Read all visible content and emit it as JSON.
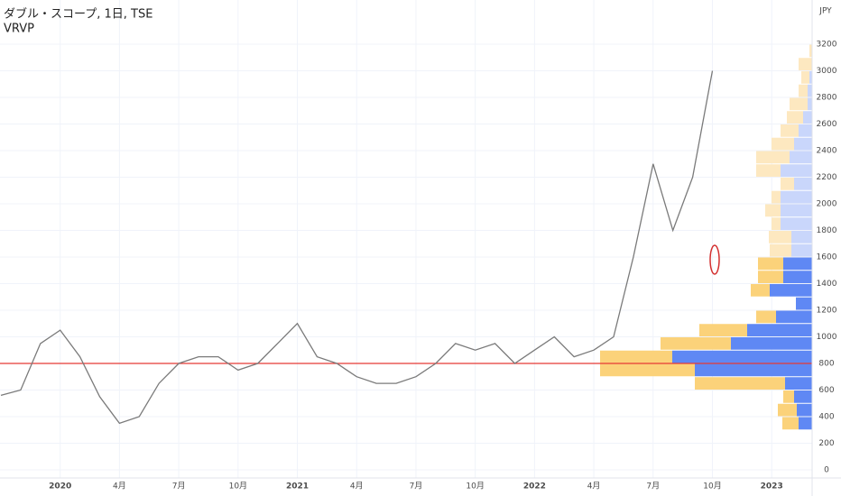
{
  "chart_data": {
    "type": "line",
    "title": "ダブル・スコープ, 1日, TSE",
    "indicator": "VRVP",
    "y_axis_label": "JPY",
    "x": [
      "2019-10",
      "2019-11",
      "2019-12",
      "2020-01",
      "2020-02",
      "2020-03",
      "2020-04",
      "2020-05",
      "2020-06",
      "2020-07",
      "2020-08",
      "2020-09",
      "2020-10",
      "2020-11",
      "2020-12",
      "2021-01",
      "2021-02",
      "2021-03",
      "2021-04",
      "2021-05",
      "2021-06",
      "2021-07",
      "2021-08",
      "2021-09",
      "2021-10",
      "2021-11",
      "2021-12",
      "2022-01",
      "2022-02",
      "2022-03",
      "2022-04",
      "2022-05",
      "2022-06",
      "2022-07",
      "2022-08",
      "2022-09",
      "2022-10"
    ],
    "series": [
      {
        "color": "#7a7a7a",
        "values": [
          560,
          600,
          950,
          1050,
          850,
          550,
          350,
          400,
          650,
          800,
          850,
          850,
          750,
          800,
          950,
          1100,
          850,
          800,
          700,
          650,
          650,
          700,
          800,
          950,
          900,
          950,
          800,
          900,
          1000,
          850,
          900,
          1000,
          1600,
          2300,
          1800,
          2200,
          3000
        ]
      }
    ],
    "xlim": [
      "2019-10",
      "2023-03"
    ],
    "xticks": [
      {
        "value": "2020-01",
        "label": "2020"
      },
      {
        "value": "2020-04",
        "label": "4月"
      },
      {
        "value": "2020-07",
        "label": "7月"
      },
      {
        "value": "2020-10",
        "label": "10月"
      },
      {
        "value": "2021-01",
        "label": "2021"
      },
      {
        "value": "2021-04",
        "label": "4月"
      },
      {
        "value": "2021-07",
        "label": "7月"
      },
      {
        "value": "2021-10",
        "label": "10月"
      },
      {
        "value": "2022-01",
        "label": "2022"
      },
      {
        "value": "2022-04",
        "label": "4月"
      },
      {
        "value": "2022-07",
        "label": "7月"
      },
      {
        "value": "2022-10",
        "label": "10月"
      },
      {
        "value": "2023-01",
        "label": "2023"
      }
    ],
    "ylim": [
      -61,
      3532
    ],
    "yticks": [
      0,
      200,
      400,
      600,
      800,
      1000,
      1200,
      1400,
      1600,
      1800,
      2000,
      2200,
      2400,
      2600,
      2800,
      3000,
      3200
    ],
    "grid": true,
    "horizontal_line": {
      "value": 800,
      "color": "#e53935"
    },
    "volume_profile": {
      "bins": [
        300,
        400,
        500,
        600,
        700,
        800,
        900,
        1000,
        1100,
        1200,
        1300,
        1400,
        1500,
        1600,
        1700,
        1800,
        1900,
        2000,
        2100,
        2200,
        2300,
        2400,
        2500,
        2600,
        2700,
        2800,
        2900,
        3000,
        3100,
        3200
      ],
      "up": [
        15,
        17,
        20,
        30,
        130,
        155,
        90,
        72,
        40,
        18,
        47,
        32,
        32,
        23,
        23,
        35,
        35,
        35,
        20,
        35,
        25,
        20,
        15,
        10,
        5,
        5,
        3,
        0,
        0
      ],
      "down": [
        18,
        21,
        12,
        100,
        105,
        80,
        78,
        53,
        22,
        0,
        21,
        28,
        28,
        24,
        25,
        10,
        17,
        10,
        15,
        27,
        37,
        25,
        20,
        18,
        20,
        10,
        9,
        15,
        3
      ],
      "value_area": [
        300,
        1600
      ],
      "up_color": "#5f88f4",
      "down_color": "#fbd27a",
      "up_color_outside": "#c9d6fb",
      "down_color_outside": "#fde8c0"
    }
  }
}
